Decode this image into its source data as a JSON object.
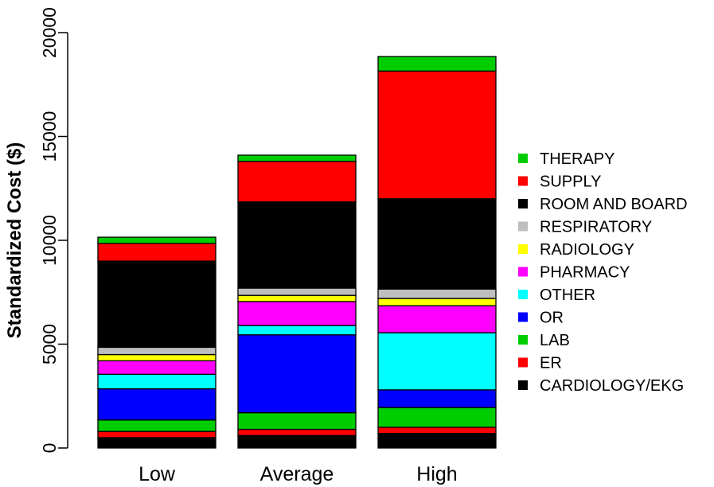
{
  "chart_data": {
    "type": "bar",
    "stacked": true,
    "title": "",
    "xlabel": "",
    "ylabel": "Standardized Cost ($)",
    "ylim": [
      0,
      20000
    ],
    "yticks": [
      "0",
      "5000",
      "10000",
      "15000",
      "20000"
    ],
    "grid": false,
    "legend_position": "right",
    "categories": [
      "Low",
      "Average",
      "High"
    ],
    "series": [
      {
        "name": "CARDIOLOGY/EKG",
        "color": "#000000",
        "values": [
          500,
          600,
          700
        ]
      },
      {
        "name": "ER",
        "color": "#ff0000",
        "values": [
          300,
          300,
          300
        ]
      },
      {
        "name": "LAB",
        "color": "#00cd00",
        "values": [
          550,
          800,
          950
        ]
      },
      {
        "name": "OR",
        "color": "#0000ff",
        "values": [
          1500,
          3750,
          850
        ]
      },
      {
        "name": "OTHER",
        "color": "#00ffff",
        "values": [
          700,
          450,
          2750
        ]
      },
      {
        "name": "PHARMACY",
        "color": "#ff00ff",
        "values": [
          650,
          1150,
          1300
        ]
      },
      {
        "name": "RADIOLOGY",
        "color": "#ffff00",
        "values": [
          300,
          300,
          350
        ]
      },
      {
        "name": "RESPIRATORY",
        "color": "#bebebe",
        "values": [
          350,
          350,
          450
        ]
      },
      {
        "name": "ROOM AND BOARD",
        "color": "#000000",
        "values": [
          4150,
          4150,
          4350
        ]
      },
      {
        "name": "SUPPLY",
        "color": "#ff0000",
        "values": [
          850,
          1950,
          6150
        ]
      },
      {
        "name": "THERAPY",
        "color": "#00cd00",
        "values": [
          300,
          300,
          700
        ]
      }
    ]
  }
}
